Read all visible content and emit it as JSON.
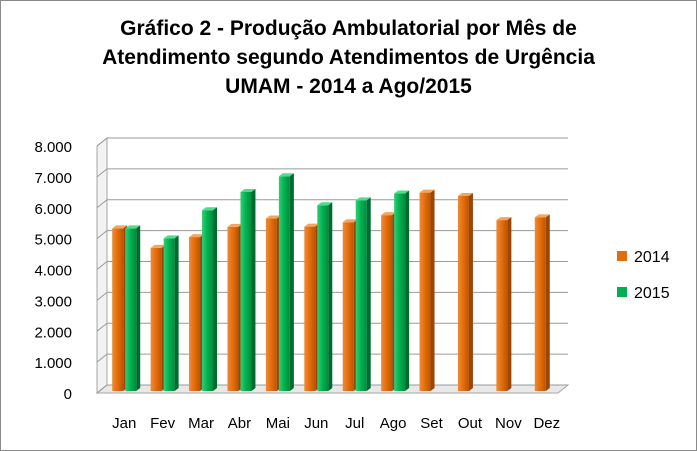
{
  "chart_data": {
    "type": "bar",
    "title_lines": [
      "Gráfico 2 - Produção Ambulatorial por Mês de",
      "Atendimento segundo Atendimentos de Urgência",
      "UMAM - 2014 a Ago/2015"
    ],
    "categories": [
      "Jan",
      "Fev",
      "Mar",
      "Abr",
      "Mai",
      "Jun",
      "Jul",
      "Ago",
      "Set",
      "Out",
      "Nov",
      "Dez"
    ],
    "series": [
      {
        "name": "2014",
        "color": "#e46c0a",
        "values": [
          5330,
          4700,
          5050,
          5380,
          5650,
          5390,
          5530,
          5760,
          6490,
          6380,
          5600,
          5690
        ]
      },
      {
        "name": "2015",
        "color": "#00b050",
        "values": [
          5330,
          5010,
          5920,
          6510,
          7020,
          6080,
          6240,
          6460,
          null,
          null,
          null,
          null
        ]
      }
    ],
    "ylim": [
      0,
      8000
    ],
    "yticks": [
      0,
      1000,
      2000,
      3000,
      4000,
      5000,
      6000,
      7000,
      8000
    ],
    "ytick_labels": [
      "0",
      "1.000",
      "2.000",
      "3.000",
      "4.000",
      "5.000",
      "6.000",
      "7.000",
      "8.000"
    ],
    "xlabel": "",
    "ylabel": "",
    "grid": true,
    "legend_position": "right"
  }
}
